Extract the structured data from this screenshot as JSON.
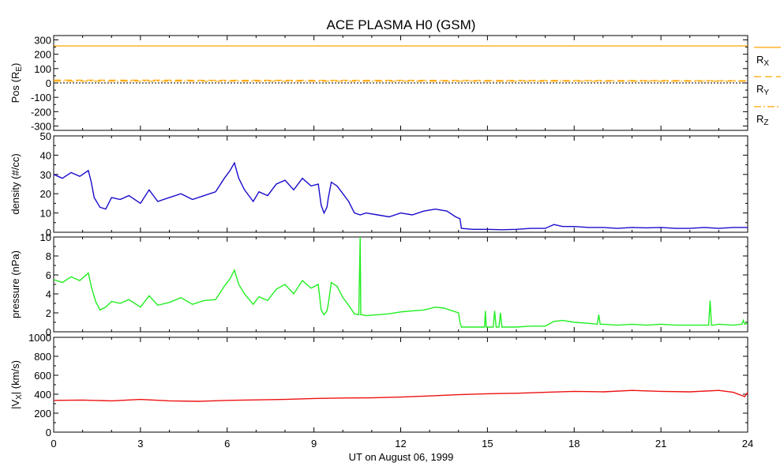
{
  "title": "ACE PLASMA H0 (GSM)",
  "xlabel": "UT on August 06, 1999",
  "x_ticks": [
    "0",
    "3",
    "6",
    "9",
    "12",
    "15",
    "18",
    "21",
    "24"
  ],
  "x_range": [
    0,
    24
  ],
  "chart_data": [
    {
      "type": "line",
      "ylabel_main": "Pos (R",
      "ylabel_sub": "E",
      "ylabel_end": ")",
      "ylim": [
        -330,
        330
      ],
      "y_ticks": [
        "300",
        "200",
        "100",
        "0",
        "-100",
        "-200",
        "-300"
      ],
      "legend": [
        {
          "main": "R",
          "sub": "X"
        },
        {
          "main": "R",
          "sub": "Y"
        },
        {
          "main": "R",
          "sub": "Z"
        }
      ],
      "series": [
        {
          "key": "rx",
          "color": "#ffa500",
          "style": "solid",
          "x": [
            0,
            24
          ],
          "y": [
            258,
            258
          ]
        },
        {
          "key": "ry",
          "color": "#ffa500",
          "style": "dashed",
          "x": [
            0,
            24
          ],
          "y": [
            20,
            16
          ]
        },
        {
          "key": "rz",
          "color": "#ffa500",
          "style": "dashdot",
          "x": [
            0,
            24
          ],
          "y": [
            12,
            12
          ]
        }
      ],
      "zero_line": true
    },
    {
      "type": "line",
      "ylabel": "density (#/cc)",
      "ylim": [
        0,
        50
      ],
      "y_ticks": [
        "50",
        "40",
        "30",
        "20",
        "10",
        "0"
      ],
      "color": "#1a0ccc",
      "x": [
        0,
        0.3,
        0.6,
        0.9,
        1.2,
        1.3,
        1.4,
        1.6,
        1.8,
        2.0,
        2.3,
        2.6,
        3.0,
        3.3,
        3.6,
        4.0,
        4.4,
        4.8,
        5.2,
        5.6,
        5.9,
        6.1,
        6.25,
        6.4,
        6.6,
        6.9,
        7.1,
        7.4,
        7.7,
        8.0,
        8.3,
        8.6,
        8.9,
        9.15,
        9.25,
        9.35,
        9.45,
        9.5,
        9.6,
        9.8,
        10.0,
        10.2,
        10.4,
        10.6,
        10.8,
        11.2,
        11.6,
        12.0,
        12.4,
        12.8,
        13.2,
        13.6,
        13.9,
        14.05,
        14.1,
        14.5,
        15.0,
        15.5,
        16.0,
        16.5,
        17.0,
        17.3,
        17.6,
        18.0,
        18.5,
        19.0,
        19.5,
        20.0,
        20.5,
        21.0,
        21.5,
        22.0,
        22.5,
        23.0,
        23.5,
        24.0
      ],
      "y": [
        30,
        28,
        31,
        29,
        32,
        26,
        18,
        13,
        12,
        18,
        17,
        19,
        15,
        22,
        16,
        18,
        20,
        17,
        19,
        21,
        28,
        32,
        36,
        28,
        22,
        16,
        21,
        19,
        25,
        27,
        22,
        28,
        24,
        25,
        14,
        10,
        13,
        18,
        26,
        24,
        20,
        16,
        10,
        9,
        10,
        9,
        8,
        10,
        9,
        11,
        12,
        11,
        8,
        7,
        2,
        1.5,
        1.5,
        1.3,
        1.5,
        2.0,
        2.0,
        4.0,
        3.0,
        3.0,
        2.5,
        2.5,
        2.0,
        2.5,
        2.3,
        2.5,
        2.0,
        2.0,
        2.5,
        2.0,
        2.5,
        2.5
      ]
    },
    {
      "type": "line",
      "ylabel": "pressure (nPa)",
      "ylim": [
        0,
        10
      ],
      "y_ticks": [
        "10",
        "8",
        "6",
        "4",
        "2",
        "0"
      ],
      "color": "#22ee22",
      "x": [
        0,
        0.3,
        0.6,
        0.9,
        1.2,
        1.3,
        1.45,
        1.6,
        1.8,
        2.0,
        2.3,
        2.6,
        3.0,
        3.3,
        3.6,
        4.0,
        4.4,
        4.8,
        5.2,
        5.6,
        5.9,
        6.1,
        6.25,
        6.4,
        6.6,
        6.9,
        7.1,
        7.4,
        7.7,
        8.0,
        8.3,
        8.6,
        8.9,
        9.15,
        9.25,
        9.35,
        9.45,
        9.5,
        9.6,
        9.8,
        10.0,
        10.2,
        10.4,
        10.55,
        10.6,
        10.62,
        10.65,
        10.7,
        10.8,
        11.2,
        11.6,
        12.0,
        12.4,
        12.8,
        13.2,
        13.5,
        13.7,
        14.0,
        14.05,
        14.1,
        14.5,
        14.9,
        14.93,
        14.96,
        15.0,
        15.2,
        15.25,
        15.3,
        15.4,
        15.45,
        15.5,
        16.0,
        16.5,
        17.0,
        17.3,
        17.6,
        18.0,
        18.5,
        18.8,
        18.85,
        18.9,
        19.0,
        19.5,
        20.0,
        20.5,
        21.0,
        21.5,
        22.0,
        22.5,
        22.65,
        22.7,
        22.75,
        22.8,
        23.0,
        23.5,
        23.8,
        23.85,
        23.9,
        24.0
      ],
      "y": [
        5.5,
        5.2,
        5.8,
        5.4,
        6.2,
        4.8,
        3.2,
        2.3,
        2.6,
        3.2,
        3.0,
        3.4,
        2.6,
        3.8,
        2.8,
        3.1,
        3.6,
        2.9,
        3.3,
        3.4,
        4.8,
        5.6,
        6.5,
        5.0,
        4.0,
        2.9,
        3.7,
        3.3,
        4.5,
        5.0,
        4.0,
        5.4,
        4.6,
        5.0,
        2.3,
        1.8,
        2.2,
        3.0,
        5.2,
        4.8,
        3.6,
        2.8,
        1.9,
        1.8,
        10.0,
        1.8,
        1.8,
        1.8,
        1.7,
        1.8,
        1.9,
        2.1,
        2.2,
        2.3,
        2.6,
        2.5,
        2.3,
        2.0,
        1.0,
        0.5,
        0.5,
        0.5,
        2.2,
        0.5,
        0.5,
        0.5,
        2.2,
        0.5,
        0.5,
        2.0,
        0.5,
        0.5,
        0.6,
        0.6,
        1.1,
        1.2,
        1.0,
        0.9,
        0.8,
        1.8,
        0.8,
        0.8,
        0.7,
        0.8,
        0.7,
        0.8,
        0.7,
        0.7,
        0.7,
        0.7,
        3.3,
        0.7,
        0.7,
        0.8,
        0.7,
        0.8,
        1.2,
        0.8,
        0.9
      ]
    },
    {
      "type": "line",
      "ylabel_main": "|V",
      "ylabel_sub": "X",
      "ylabel_end": "| (km/s)",
      "ylim": [
        0,
        1000
      ],
      "y_ticks": [
        "1000",
        "800",
        "600",
        "400",
        "200",
        "0"
      ],
      "color": "#ee1111",
      "x": [
        0,
        1,
        2,
        3,
        4,
        5,
        6,
        7,
        8,
        9,
        10,
        11,
        12,
        13,
        14,
        15,
        16,
        17,
        18,
        19,
        20,
        21,
        22,
        23,
        23.5,
        23.9,
        24.0
      ],
      "y": [
        335,
        338,
        330,
        345,
        330,
        325,
        335,
        340,
        345,
        355,
        360,
        362,
        370,
        382,
        395,
        405,
        410,
        420,
        430,
        425,
        440,
        430,
        425,
        440,
        420,
        375,
        420
      ]
    }
  ]
}
